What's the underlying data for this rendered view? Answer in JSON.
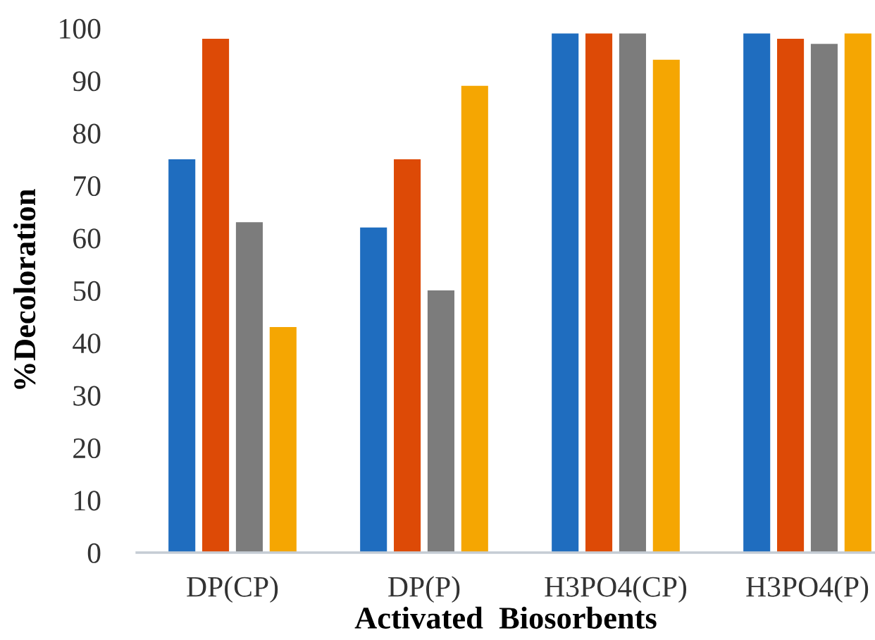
{
  "chart_data": {
    "type": "bar",
    "xlabel": "Activated  Biosorbents",
    "ylabel": "%Decoloration",
    "categories": [
      "DP(CP)",
      "DP(P)",
      "H3PO4(CP)",
      "H3PO4(P)"
    ],
    "series": [
      {
        "color": "#1f6dbf",
        "values": [
          75,
          62,
          99,
          99
        ]
      },
      {
        "color": "#dd4a06",
        "values": [
          98,
          75,
          99,
          98
        ]
      },
      {
        "color": "#7c7c7c",
        "values": [
          63,
          50,
          99,
          97
        ]
      },
      {
        "color": "#f5a602",
        "values": [
          43,
          89,
          94,
          99
        ]
      }
    ],
    "ylim": [
      0,
      100
    ],
    "yticks": [
      0,
      10,
      20,
      30,
      40,
      50,
      60,
      70,
      80,
      90,
      100
    ]
  }
}
